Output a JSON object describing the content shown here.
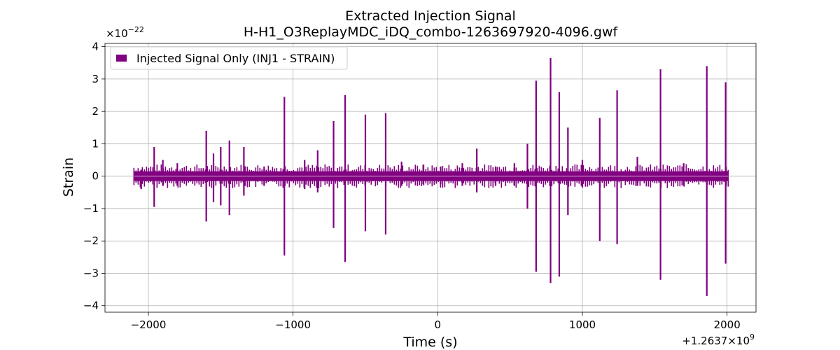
{
  "chart_data": {
    "type": "line",
    "title": "Extracted Injection Signal",
    "subtitle": "H-H1_O3ReplayMDC_iDQ_combo-1263697920-4096.gwf",
    "xlabel": "Time (s)",
    "ylabel": "Strain",
    "x_offset_label": "+1.2637×10",
    "x_offset_exp": "9",
    "y_scale_label": "×10",
    "y_scale_exp": "−22",
    "xlim": [
      -2300,
      2200
    ],
    "ylim": [
      -4.2,
      4.1
    ],
    "xticks": [
      -2000,
      -1000,
      0,
      1000,
      2000
    ],
    "xtick_labels": [
      "−2000",
      "−1000",
      "0",
      "1000",
      "2000"
    ],
    "yticks": [
      -4,
      -3,
      -2,
      -1,
      0,
      1,
      2,
      3,
      4
    ],
    "ytick_labels": [
      "−4",
      "−3",
      "−2",
      "−1",
      "0",
      "1",
      "2",
      "3",
      "4"
    ],
    "grid": true,
    "legend_position": "top-left",
    "series": [
      {
        "name": "Injected Signal Only (INJ1 - STRAIN)",
        "color": "#800080",
        "x_range": [
          -2100,
          2010
        ],
        "background_envelope": 0.15,
        "spikes": [
          {
            "x": -2050,
            "top": 0.2,
            "bottom": -0.4
          },
          {
            "x": -1960,
            "top": 0.9,
            "bottom": -0.95
          },
          {
            "x": -1900,
            "top": 0.5,
            "bottom": -0.3
          },
          {
            "x": -1800,
            "top": 0.4,
            "bottom": -0.3
          },
          {
            "x": -1600,
            "top": 1.4,
            "bottom": -1.4
          },
          {
            "x": -1550,
            "top": 0.7,
            "bottom": -0.8
          },
          {
            "x": -1500,
            "top": 0.9,
            "bottom": -0.9
          },
          {
            "x": -1440,
            "top": 1.1,
            "bottom": -1.2
          },
          {
            "x": -1340,
            "top": 0.9,
            "bottom": -0.6
          },
          {
            "x": -1200,
            "top": 0.3,
            "bottom": -0.3
          },
          {
            "x": -1060,
            "top": 2.45,
            "bottom": -2.45
          },
          {
            "x": -920,
            "top": 0.5,
            "bottom": -0.4
          },
          {
            "x": -830,
            "top": 0.8,
            "bottom": -0.5
          },
          {
            "x": -720,
            "top": 1.7,
            "bottom": -1.6
          },
          {
            "x": -640,
            "top": 2.5,
            "bottom": -2.65
          },
          {
            "x": -500,
            "top": 1.9,
            "bottom": -1.7
          },
          {
            "x": -360,
            "top": 1.95,
            "bottom": -1.8
          },
          {
            "x": -250,
            "top": 0.45,
            "bottom": -0.3
          },
          {
            "x": -100,
            "top": 0.35,
            "bottom": -0.25
          },
          {
            "x": 20,
            "top": 0.3,
            "bottom": -0.25
          },
          {
            "x": 170,
            "top": 0.4,
            "bottom": -0.3
          },
          {
            "x": 270,
            "top": 0.85,
            "bottom": -0.5
          },
          {
            "x": 400,
            "top": 0.3,
            "bottom": -0.3
          },
          {
            "x": 530,
            "top": 0.4,
            "bottom": -0.3
          },
          {
            "x": 620,
            "top": 1.0,
            "bottom": -1.0
          },
          {
            "x": 680,
            "top": 2.95,
            "bottom": -2.95
          },
          {
            "x": 780,
            "top": 3.65,
            "bottom": -3.3
          },
          {
            "x": 840,
            "top": 2.6,
            "bottom": -3.1
          },
          {
            "x": 900,
            "top": 1.5,
            "bottom": -1.2
          },
          {
            "x": 1000,
            "top": 0.5,
            "bottom": -0.35
          },
          {
            "x": 1120,
            "top": 1.8,
            "bottom": -2.0
          },
          {
            "x": 1240,
            "top": 2.65,
            "bottom": -2.1
          },
          {
            "x": 1380,
            "top": 0.6,
            "bottom": -0.3
          },
          {
            "x": 1540,
            "top": 3.3,
            "bottom": -3.2
          },
          {
            "x": 1700,
            "top": 0.4,
            "bottom": -0.3
          },
          {
            "x": 1860,
            "top": 3.4,
            "bottom": -3.7
          },
          {
            "x": 1990,
            "top": 2.9,
            "bottom": -2.7
          }
        ]
      }
    ]
  }
}
